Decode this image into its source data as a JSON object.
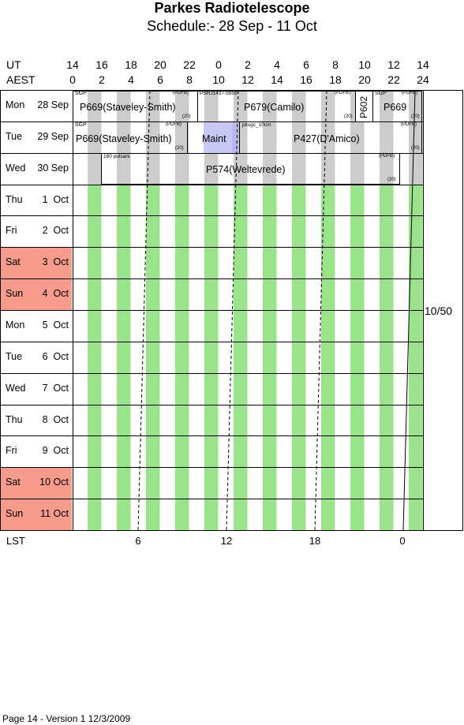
{
  "title": "Parkes Radiotelescope",
  "subtitle": "Schedule:- 28 Sep - 11 Oct",
  "ut_label": "UT",
  "aest_label": "AEST",
  "lst_label": "LST",
  "ut_ticks": [
    "14",
    "16",
    "18",
    "20",
    "22",
    "0",
    "2",
    "4",
    "6",
    "8",
    "10",
    "12",
    "14"
  ],
  "aest_ticks": [
    "0",
    "2",
    "4",
    "6",
    "8",
    "10",
    "12",
    "14",
    "16",
    "18",
    "20",
    "22",
    "24"
  ],
  "lst_ticks": [
    "6",
    "12",
    "18",
    "0"
  ],
  "days": [
    {
      "name": "Mon",
      "num": "28 Sep",
      "weekend": false
    },
    {
      "name": "Tue",
      "num": "29 Sep",
      "weekend": false
    },
    {
      "name": "Wed",
      "num": "30 Sep",
      "weekend": false
    },
    {
      "name": "Thu",
      "num": "1  Oct",
      "weekend": false
    },
    {
      "name": "Fri",
      "num": "2  Oct",
      "weekend": false
    },
    {
      "name": "Sat",
      "num": "3  Oct",
      "weekend": true
    },
    {
      "name": "Sun",
      "num": "4  Oct",
      "weekend": true
    },
    {
      "name": "Mon",
      "num": "5  Oct",
      "weekend": false
    },
    {
      "name": "Tue",
      "num": "6  Oct",
      "weekend": false
    },
    {
      "name": "Wed",
      "num": "7  Oct",
      "weekend": false
    },
    {
      "name": "Thu",
      "num": "8  Oct",
      "weekend": false
    },
    {
      "name": "Fri",
      "num": "9  Oct",
      "weekend": false
    },
    {
      "name": "Sat",
      "num": "10 Oct",
      "weekend": true
    },
    {
      "name": "Sun",
      "num": "11 Oct",
      "weekend": true
    }
  ],
  "night_bands_color": "#99e38a",
  "day_bands_color": "#cccccc",
  "maint_color": "#c8c8f4",
  "weekend_color": "#f79b8c",
  "total": "10/50",
  "footer": "Page 14 - Version 1  12/3/2009",
  "bookings": {
    "mon": {
      "sgp1": "SGP",
      "p669": "P669(Staveley-Smith)",
      "pdfb1": "(PDFB)",
      "n20a": "(20)",
      "psrj": "PSRJ1437-5959",
      "p679": "P679(Camilo)",
      "pdfb2": "(PDFB)",
      "n20b": "(20)",
      "p602": "P602",
      "sgp2": "SGP",
      "pdfb3": "(PDFB)",
      "p669b": "P669",
      "n20c": "(20)"
    },
    "tue": {
      "sgp": "SGP",
      "pdfb1": "(PDFB)",
      "p669": "P669(Staveley-Smith)",
      "n20a": "(20)",
      "maint": "Maint",
      "pksgc": "pksgc_10cm",
      "p427": "P427(D'Amico)",
      "pdfb2": "(PDFB)",
      "n20b": "(20)"
    },
    "wed": {
      "pulsars": "160 pulsars",
      "p574": "P574(Weltevrede)",
      "pdfb": "(PDFB)",
      "n20": "(20)"
    }
  }
}
